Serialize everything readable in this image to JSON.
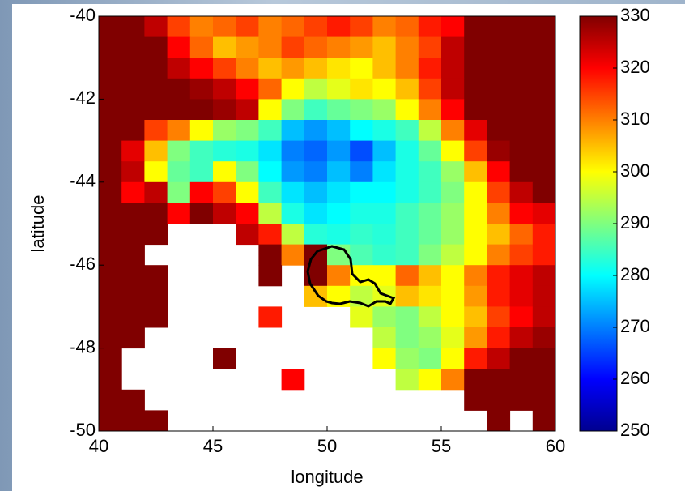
{
  "chart_data": {
    "type": "heatmap",
    "xlabel": "longitude",
    "ylabel": "latitude",
    "colormap": "jet",
    "xlim": [
      40,
      60
    ],
    "ylim": [
      -50,
      -40
    ],
    "xticks": [
      40,
      45,
      50,
      55,
      60
    ],
    "yticks": [
      -50,
      -48,
      -46,
      -44,
      -42,
      -40
    ],
    "clim": [
      250,
      330
    ],
    "cticks": [
      250,
      260,
      270,
      280,
      290,
      300,
      310,
      320,
      330
    ],
    "x": [
      40.5,
      41.5,
      42.5,
      43.5,
      44.5,
      45.5,
      46.5,
      47.5,
      48.5,
      49.5,
      50.5,
      51.5,
      52.5,
      53.5,
      54.5,
      55.5,
      56.5,
      57.5,
      58.5,
      59.5
    ],
    "y": [
      -40.25,
      -40.75,
      -41.25,
      -41.75,
      -42.25,
      -42.75,
      -43.25,
      -43.75,
      -44.25,
      -44.75,
      -45.25,
      -45.75,
      -46.25,
      -46.75,
      -47.25,
      -47.75,
      -48.25,
      -48.75,
      -49.25,
      -49.75
    ],
    "z": [
      [
        330,
        330,
        325,
        315,
        310,
        312,
        315,
        310,
        312,
        315,
        318,
        315,
        310,
        312,
        318,
        320,
        330,
        330,
        330,
        330
      ],
      [
        330,
        330,
        330,
        320,
        312,
        305,
        308,
        310,
        315,
        312,
        310,
        308,
        305,
        310,
        315,
        325,
        330,
        330,
        330,
        330
      ],
      [
        330,
        330,
        330,
        325,
        320,
        315,
        310,
        305,
        308,
        305,
        302,
        300,
        305,
        310,
        318,
        325,
        330,
        330,
        330,
        330
      ],
      [
        330,
        330,
        330,
        330,
        328,
        325,
        320,
        312,
        300,
        295,
        298,
        302,
        300,
        305,
        315,
        325,
        330,
        330,
        330,
        330
      ],
      [
        330,
        330,
        330,
        330,
        330,
        328,
        325,
        300,
        290,
        285,
        288,
        290,
        292,
        300,
        310,
        320,
        330,
        330,
        330,
        330
      ],
      [
        330,
        330,
        315,
        310,
        300,
        292,
        290,
        285,
        275,
        272,
        275,
        280,
        282,
        285,
        295,
        310,
        322,
        330,
        330,
        330
      ],
      [
        330,
        322,
        305,
        290,
        285,
        283,
        282,
        278,
        270,
        268,
        272,
        266,
        275,
        282,
        288,
        300,
        315,
        328,
        330,
        330
      ],
      [
        330,
        325,
        300,
        288,
        285,
        300,
        290,
        280,
        272,
        270,
        275,
        270,
        278,
        282,
        285,
        292,
        305,
        320,
        330,
        330
      ],
      [
        330,
        320,
        325,
        290,
        320,
        315,
        300,
        285,
        278,
        275,
        278,
        280,
        280,
        282,
        285,
        290,
        300,
        315,
        325,
        330
      ],
      [
        330,
        330,
        330,
        320,
        330,
        325,
        320,
        295,
        282,
        278,
        280,
        282,
        282,
        285,
        288,
        292,
        300,
        310,
        320,
        322
      ],
      [
        330,
        330,
        330,
        null,
        null,
        null,
        325,
        318,
        295,
        283,
        282,
        284,
        283,
        285,
        288,
        292,
        300,
        305,
        312,
        318
      ],
      [
        330,
        330,
        null,
        null,
        null,
        null,
        null,
        330,
        310,
        330,
        290,
        286,
        284,
        285,
        290,
        295,
        300,
        310,
        315,
        318
      ],
      [
        330,
        330,
        330,
        null,
        null,
        null,
        null,
        330,
        null,
        330,
        310,
        300,
        300,
        312,
        305,
        300,
        310,
        318,
        322,
        325
      ],
      [
        330,
        330,
        330,
        null,
        null,
        null,
        null,
        null,
        null,
        305,
        300,
        295,
        298,
        305,
        302,
        300,
        308,
        318,
        322,
        325
      ],
      [
        330,
        330,
        330,
        null,
        null,
        null,
        null,
        318,
        null,
        null,
        null,
        298,
        292,
        290,
        295,
        300,
        305,
        315,
        320,
        325
      ],
      [
        330,
        330,
        null,
        null,
        null,
        null,
        null,
        null,
        null,
        null,
        null,
        null,
        295,
        290,
        292,
        298,
        308,
        318,
        325,
        328
      ],
      [
        330,
        null,
        null,
        null,
        null,
        330,
        null,
        null,
        null,
        null,
        null,
        null,
        300,
        292,
        290,
        300,
        318,
        325,
        330,
        330
      ],
      [
        330,
        null,
        null,
        null,
        null,
        null,
        null,
        null,
        320,
        null,
        null,
        null,
        null,
        295,
        300,
        310,
        330,
        330,
        330,
        330
      ],
      [
        330,
        330,
        null,
        null,
        null,
        null,
        null,
        null,
        null,
        null,
        null,
        null,
        null,
        null,
        null,
        null,
        330,
        330,
        330,
        330
      ],
      [
        330,
        330,
        330,
        null,
        null,
        null,
        null,
        null,
        null,
        null,
        null,
        null,
        null,
        null,
        null,
        null,
        null,
        330,
        null,
        330
      ]
    ]
  }
}
